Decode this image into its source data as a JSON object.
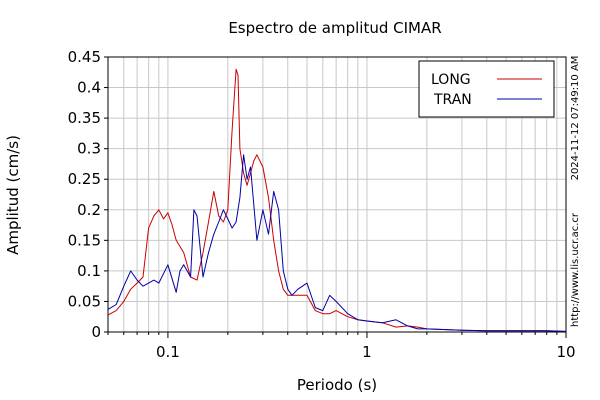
{
  "chart_data": {
    "type": "line",
    "title": "Espectro de amplitud CIMAR",
    "xlabel": "Periodo (s)",
    "ylabel": "Amplitud (cm/s)",
    "xscale": "log",
    "xlim": [
      0.05,
      10
    ],
    "ylim": [
      0,
      0.45
    ],
    "grid": true,
    "legend_position": "top-right",
    "x_ticks": [
      0.1,
      1,
      10
    ],
    "x_tick_labels": [
      "0.1",
      "1",
      "10"
    ],
    "y_ticks": [
      0,
      0.05,
      0.1,
      0.15,
      0.2,
      0.25,
      0.3,
      0.35,
      0.4,
      0.45
    ],
    "y_tick_labels": [
      "0",
      "0.05",
      "0.1",
      "0.15",
      "0.2",
      "0.25",
      "0.3",
      "0.35",
      "0.4",
      "0.45"
    ],
    "timestamp": "2024-11-12 07:49:10 AM",
    "source_url": "http://www.lis.ucr.ac.cr",
    "series": [
      {
        "name": "LONG",
        "color": "#cc0000",
        "x": [
          0.05,
          0.055,
          0.06,
          0.065,
          0.07,
          0.075,
          0.08,
          0.085,
          0.09,
          0.095,
          0.1,
          0.105,
          0.11,
          0.12,
          0.13,
          0.14,
          0.15,
          0.16,
          0.17,
          0.18,
          0.19,
          0.2,
          0.21,
          0.22,
          0.225,
          0.23,
          0.24,
          0.25,
          0.26,
          0.27,
          0.28,
          0.3,
          0.32,
          0.34,
          0.36,
          0.38,
          0.4,
          0.45,
          0.5,
          0.55,
          0.6,
          0.65,
          0.7,
          0.8,
          0.9,
          1,
          1.2,
          1.4,
          1.6,
          1.8,
          2,
          2.5,
          3,
          4,
          5,
          6,
          8,
          10
        ],
        "y": [
          0.028,
          0.035,
          0.05,
          0.07,
          0.08,
          0.09,
          0.17,
          0.19,
          0.2,
          0.185,
          0.195,
          0.175,
          0.15,
          0.13,
          0.09,
          0.085,
          0.13,
          0.18,
          0.23,
          0.19,
          0.18,
          0.2,
          0.33,
          0.43,
          0.42,
          0.3,
          0.26,
          0.24,
          0.26,
          0.28,
          0.29,
          0.27,
          0.22,
          0.15,
          0.1,
          0.07,
          0.06,
          0.06,
          0.06,
          0.035,
          0.03,
          0.03,
          0.035,
          0.025,
          0.02,
          0.018,
          0.015,
          0.008,
          0.01,
          0.008,
          0.005,
          0.004,
          0.003,
          0.002,
          0.002,
          0.002,
          0.002,
          0.001
        ]
      },
      {
        "name": "TRAN",
        "color": "#0000aa",
        "x": [
          0.05,
          0.055,
          0.06,
          0.065,
          0.07,
          0.075,
          0.08,
          0.085,
          0.09,
          0.1,
          0.11,
          0.115,
          0.12,
          0.13,
          0.135,
          0.14,
          0.145,
          0.15,
          0.16,
          0.17,
          0.18,
          0.19,
          0.2,
          0.21,
          0.22,
          0.23,
          0.24,
          0.25,
          0.26,
          0.28,
          0.3,
          0.32,
          0.34,
          0.36,
          0.38,
          0.4,
          0.42,
          0.45,
          0.5,
          0.55,
          0.6,
          0.65,
          0.7,
          0.8,
          0.9,
          1,
          1.2,
          1.4,
          1.6,
          1.8,
          2,
          2.5,
          3,
          4,
          5,
          6,
          8,
          10
        ],
        "y": [
          0.037,
          0.045,
          0.075,
          0.1,
          0.085,
          0.075,
          0.08,
          0.085,
          0.08,
          0.11,
          0.065,
          0.1,
          0.11,
          0.09,
          0.2,
          0.19,
          0.14,
          0.09,
          0.13,
          0.16,
          0.18,
          0.2,
          0.185,
          0.17,
          0.18,
          0.22,
          0.29,
          0.25,
          0.27,
          0.15,
          0.2,
          0.16,
          0.23,
          0.2,
          0.1,
          0.07,
          0.06,
          0.07,
          0.08,
          0.04,
          0.035,
          0.06,
          0.05,
          0.03,
          0.02,
          0.018,
          0.015,
          0.02,
          0.01,
          0.005,
          0.005,
          0.004,
          0.003,
          0.002,
          0.002,
          0.002,
          0.002,
          0.001
        ]
      }
    ]
  }
}
